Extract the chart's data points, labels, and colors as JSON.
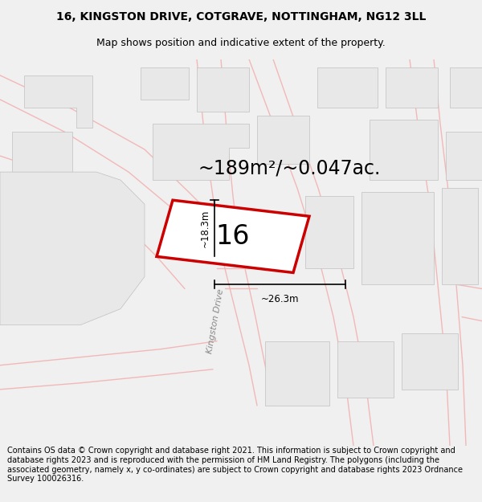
{
  "title_line1": "16, KINGSTON DRIVE, COTGRAVE, NOTTINGHAM, NG12 3LL",
  "title_line2": "Map shows position and indicative extent of the property.",
  "footer_text": "Contains OS data © Crown copyright and database right 2021. This information is subject to Crown copyright and database rights 2023 and is reproduced with the permission of HM Land Registry. The polygons (including the associated geometry, namely x, y co-ordinates) are subject to Crown copyright and database rights 2023 Ordnance Survey 100026316.",
  "area_label": "~189m²/~0.047ac.",
  "house_number": "16",
  "width_label": "~26.3m",
  "height_label": "~18.3m",
  "road_label": "Kingston Drive",
  "bg_color": "#f0f0f0",
  "map_bg": "#ffffff",
  "building_fill": "#e8e8e8",
  "building_edge": "#c0c0c0",
  "road_outline_color": "#f2b8b8",
  "plot_color": "#cc0000",
  "title_fontsize": 10,
  "subtitle_fontsize": 9,
  "footer_fontsize": 7.0,
  "area_fontsize": 17,
  "number_fontsize": 24,
  "dim_fontsize": 8.5
}
